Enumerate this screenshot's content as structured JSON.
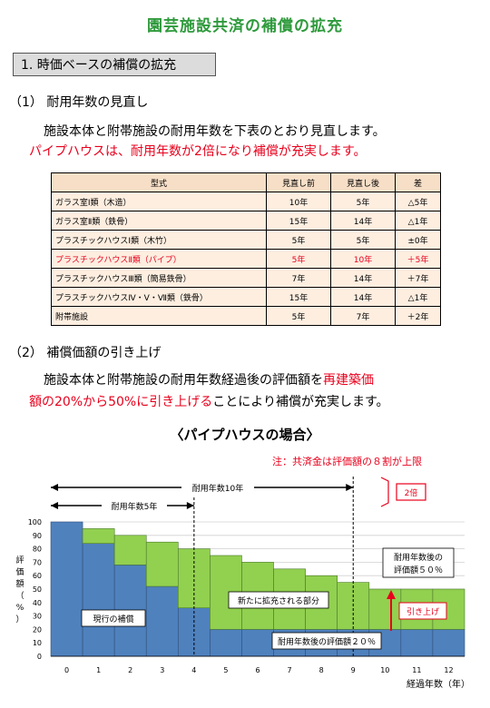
{
  "title": "園芸施設共済の補償の拡充",
  "section1": "1. 時価ベースの補償の拡充",
  "sub1": "（1） 耐用年数の見直し",
  "para1_line1": "施設本体と附帯施設の耐用年数を下表のとおり見直します。",
  "para1_line2": "パイプハウスは、耐用年数が2倍になり補償が充実します。",
  "table": {
    "headers": [
      "型式",
      "見直し前",
      "見直し後",
      "差"
    ],
    "rows": [
      [
        "ガラス室Ⅰ類（木造）",
        "10年",
        "5年",
        "△5年"
      ],
      [
        "ガラス室Ⅱ類（鉄骨）",
        "15年",
        "14年",
        "△1年"
      ],
      [
        "プラスチックハウスⅠ類（木竹）",
        "5年",
        "5年",
        "±0年"
      ],
      [
        "プラスチックハウスⅡ類（パイプ）",
        "5年",
        "10年",
        "＋5年"
      ],
      [
        "プラスチックハウスⅢ類（簡易鉄骨）",
        "7年",
        "14年",
        "＋7年"
      ],
      [
        "プラスチックハウスⅣ・Ⅴ・Ⅶ類（鉄骨）",
        "15年",
        "14年",
        "△1年"
      ],
      [
        "附帯施設",
        "5年",
        "7年",
        "＋2年"
      ]
    ],
    "highlight_row": 3
  },
  "sub2": "（2） 補償価額の引き上げ",
  "para2_line1_a": "施設本体と附帯施設の耐用年数経過後の評価額を",
  "para2_line1_b": "再建築価",
  "para2_line2_a": "額の20%から50%に引き上げる",
  "para2_line2_b": "ことにより補償が充実します。",
  "chart_heading": "〈パイプハウスの場合〉",
  "chart_note": "注：共済金は評価額の８割が上限",
  "chart_data": {
    "type": "bar",
    "x": [
      0,
      1,
      2,
      3,
      4,
      5,
      6,
      7,
      8,
      9,
      10,
      11,
      12
    ],
    "series": [
      {
        "name": "現行の補償",
        "values": [
          100,
          84,
          68,
          52,
          36,
          20,
          20,
          20,
          20,
          20,
          20,
          20,
          20
        ]
      },
      {
        "name": "新たに拡充される部分",
        "values": [
          0,
          11,
          22,
          33,
          44,
          55,
          50,
          45,
          40,
          35,
          30,
          30,
          30
        ]
      }
    ],
    "ylim": [
      0,
      100
    ],
    "yticks": [
      0,
      10,
      20,
      30,
      40,
      50,
      60,
      70,
      80,
      90,
      100
    ],
    "ylabel": "評価額（%）",
    "xlabel": "経過年数（年）",
    "colors": {
      "blue": "#4f81bd",
      "green": "#92d050"
    },
    "annotations": {
      "life10": "耐用年数10年",
      "life5": "耐用年数5年",
      "double": "2倍",
      "after50_line1": "耐用年数後の",
      "after50_line2": "評価額５０％",
      "raise": "引き上げ",
      "after20": "耐用年数後の評価額２０％"
    }
  }
}
